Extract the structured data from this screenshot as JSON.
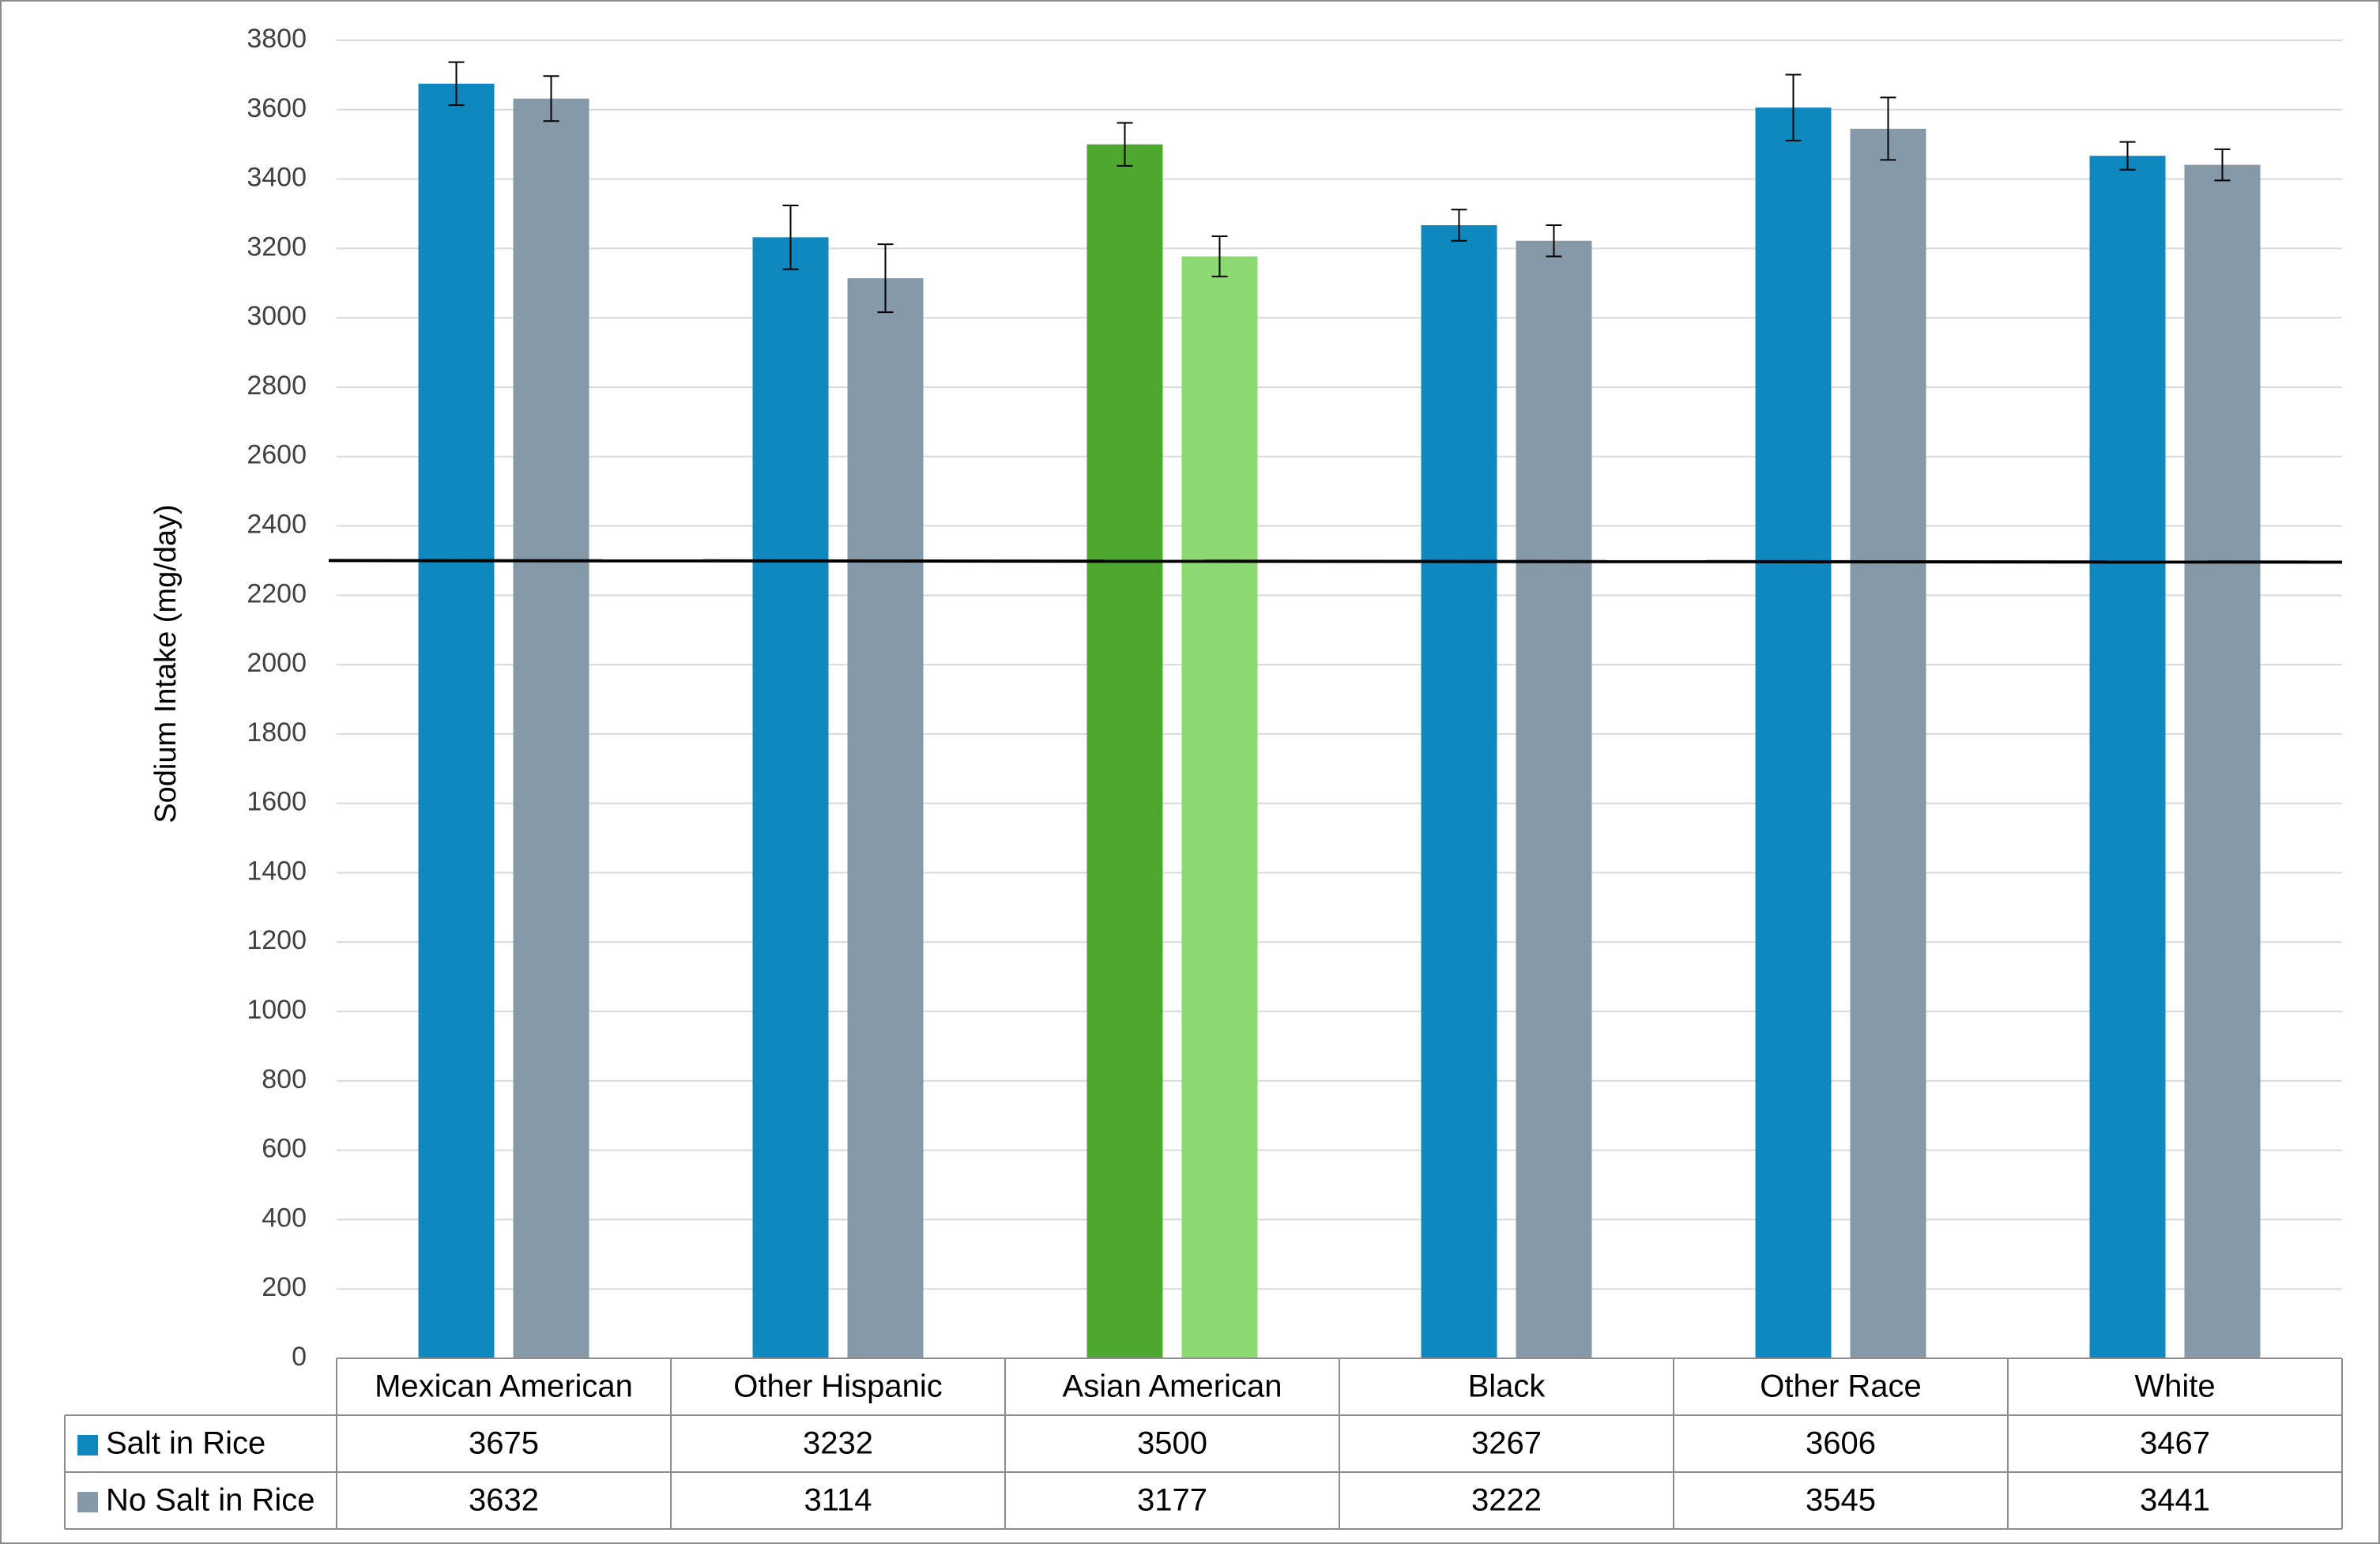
{
  "chart_data": {
    "type": "bar",
    "ylabel": "Sodium Intake (mg/day)",
    "ylim": [
      0,
      3800
    ],
    "ytick_step": 200,
    "grid": true,
    "reference_line": 2300,
    "categories": [
      "Mexican American",
      "Other Hispanic",
      "Asian American",
      "Black",
      "Other Race",
      "White"
    ],
    "series": [
      {
        "name": "Salt in Rice",
        "color": "#0e88bf",
        "values": [
          3675,
          3232,
          3500,
          3267,
          3606,
          3467
        ],
        "error": [
          62,
          92,
          62,
          45,
          95,
          40
        ]
      },
      {
        "name": "No Salt in Rice",
        "color": "#8699a9",
        "values": [
          3632,
          3114,
          3177,
          3222,
          3545,
          3441
        ],
        "error": [
          65,
          98,
          58,
          45,
          90,
          45
        ]
      }
    ],
    "highlight": {
      "category_index": 2,
      "colors": [
        "#4ea72e",
        "#8dd971"
      ]
    },
    "data_table": true
  }
}
